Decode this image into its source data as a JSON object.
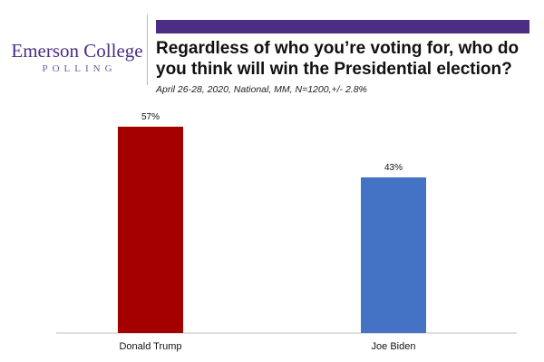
{
  "logo": {
    "name": "Emerson College",
    "sub": "POLLING"
  },
  "colors": {
    "brand": "#4b2e83",
    "trump": "#a50000",
    "biden": "#4472c4"
  },
  "chart_data": {
    "type": "bar",
    "title": "Regardless of who you’re voting for, who do you think will win the Presidential election?",
    "subtitle": "April 26-28, 2020, National, MM, N=1200,+/- 2.8%",
    "categories": [
      "Donald Trump",
      "Joe Biden"
    ],
    "values": [
      57,
      43
    ],
    "data_labels": [
      "57%",
      "43%"
    ],
    "bar_colors": [
      "#a50000",
      "#4472c4"
    ],
    "xlabel": "",
    "ylabel": "",
    "ylim": [
      0,
      60
    ],
    "grid": false,
    "legend": "none"
  }
}
